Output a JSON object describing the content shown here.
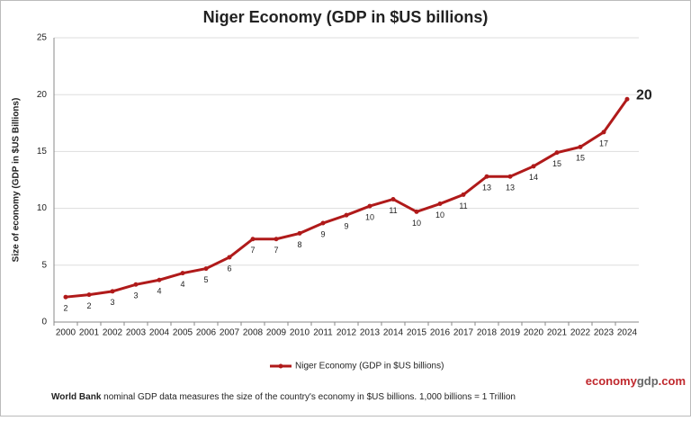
{
  "chart_data": {
    "type": "line",
    "title": "Niger Economy (GDP in $US billions)",
    "y_label": "Size of economy (GDP in $US Billions)",
    "categories": [
      "2000",
      "2001",
      "2002",
      "2003",
      "2004",
      "2005",
      "2006",
      "2007",
      "2008",
      "2009",
      "2010",
      "2011",
      "2012",
      "2013",
      "2014",
      "2015",
      "2016",
      "2017",
      "2018",
      "2019",
      "2020",
      "2021",
      "2022",
      "2023",
      "2024"
    ],
    "series": [
      {
        "name": "Niger Economy (GDP in $US billions)",
        "color": "#b01a1a",
        "values": [
          2.2,
          2.4,
          2.7,
          3.3,
          3.7,
          4.3,
          4.7,
          5.7,
          7.3,
          7.3,
          7.8,
          8.7,
          9.4,
          10.2,
          10.8,
          9.7,
          10.4,
          11.2,
          12.8,
          12.8,
          13.7,
          14.9,
          15.4,
          16.7,
          19.6
        ],
        "value_labels": [
          "2",
          "2",
          "3",
          "3",
          "4",
          "4",
          "5",
          "6",
          "7",
          "7",
          "8",
          "9",
          "9",
          "10",
          "11",
          "10",
          "10",
          "11",
          "13",
          "13",
          "14",
          "15",
          "15",
          "17",
          "20"
        ]
      }
    ],
    "ylim": [
      0,
      25
    ],
    "yticks": [
      0,
      5,
      10,
      15,
      20,
      25
    ],
    "grid": true,
    "legend": "bottom",
    "note": {
      "bold": "World Bank",
      "text": " nominal GDP data  measures the size of the country's economy in $US billions. 1,000 billions = 1 Trillion"
    },
    "brand": [
      "economy",
      "gdp",
      ".com"
    ]
  }
}
